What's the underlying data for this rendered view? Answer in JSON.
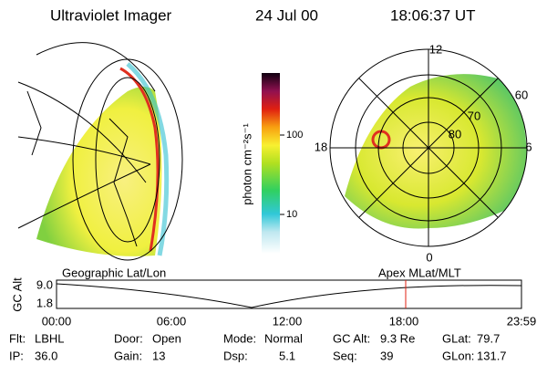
{
  "header": {
    "instrument": "Ultraviolet Imager",
    "date": "24 Jul 00",
    "time": "18:06:37 UT"
  },
  "colorbar": {
    "label": "photon cm⁻²s⁻¹",
    "tick_labels": [
      "100",
      "10"
    ]
  },
  "polar_plot": {
    "mlt_labels": [
      "12",
      "18",
      "6",
      "0"
    ],
    "mlat_labels": [
      "60",
      "70",
      "80"
    ]
  },
  "panel_labels": {
    "left": "Geographic Lat/Lon",
    "right": "Apex MLat/MLT"
  },
  "altitude_plot": {
    "axis_label": "GC Alt",
    "y_labels": [
      "9.0",
      "1.8"
    ],
    "time_labels": [
      "00:00",
      "06:00",
      "12:00",
      "18:00",
      "23:59"
    ]
  },
  "footer": [
    [
      {
        "label": "Flt:",
        "value": "LBHL"
      },
      {
        "label": "Door:",
        "value": "Open"
      },
      {
        "label": "Mode:",
        "value": "Normal"
      },
      {
        "label": "GC Alt:",
        "value": "9.3 Re"
      },
      {
        "label": "GLat:",
        "value": "79.7"
      }
    ],
    [
      {
        "label": "IP:",
        "value": "36.0"
      },
      {
        "label": "Gain:",
        "value": "13"
      },
      {
        "label": "Dsp:",
        "value": "5.1"
      },
      {
        "label": "Seq:",
        "value": "39"
      },
      {
        "label": "GLon:",
        "value": "131.7"
      }
    ]
  ]
}
